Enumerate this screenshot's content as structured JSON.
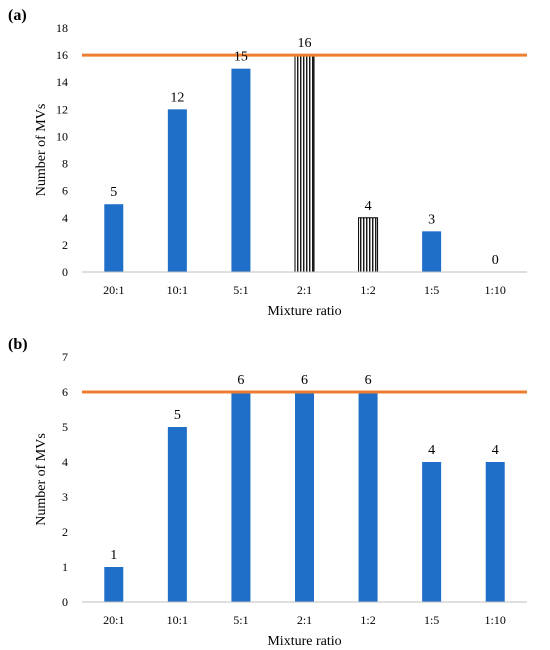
{
  "chart_data": [
    {
      "panel_label": "(a)",
      "type": "bar",
      "categories": [
        "20:1",
        "10:1",
        "5:1",
        "2:1",
        "1:2",
        "1:5",
        "1:10"
      ],
      "values": [
        5,
        12,
        15,
        16,
        4,
        3,
        0
      ],
      "data_labels": [
        "5",
        "12",
        "15",
        "16",
        "4",
        "3",
        "0"
      ],
      "bar_fills": [
        "solid",
        "solid",
        "solid",
        "hatched",
        "hatched",
        "solid",
        "solid"
      ],
      "reference_line": 16,
      "xlabel": "Mixture ratio",
      "ylabel": "Number of MVs",
      "ylim": [
        0,
        18
      ],
      "yticks": [
        "0",
        "2",
        "4",
        "6",
        "8",
        "10",
        "12",
        "14",
        "16",
        "18"
      ],
      "grid": false,
      "legend": "none"
    },
    {
      "panel_label": "(b)",
      "type": "bar",
      "categories": [
        "20:1",
        "10:1",
        "5:1",
        "2:1",
        "1:2",
        "1:5",
        "1:10"
      ],
      "values": [
        1,
        5,
        6,
        6,
        6,
        4,
        4
      ],
      "data_labels": [
        "1",
        "5",
        "6",
        "6",
        "6",
        "4",
        "4"
      ],
      "bar_fills": [
        "solid",
        "solid",
        "solid",
        "solid",
        "solid",
        "solid",
        "solid"
      ],
      "reference_line": 6,
      "xlabel": "Mixture ratio",
      "ylabel": "Number of MVs",
      "ylim": [
        0,
        7
      ],
      "yticks": [
        "0",
        "1",
        "2",
        "3",
        "4",
        "5",
        "6",
        "7"
      ],
      "grid": false,
      "legend": "none"
    }
  ],
  "colors": {
    "bar": "#1f6fc8",
    "reference_line": "#ef7d31",
    "hatch": "#000000",
    "axis": "#bfbfbf"
  }
}
